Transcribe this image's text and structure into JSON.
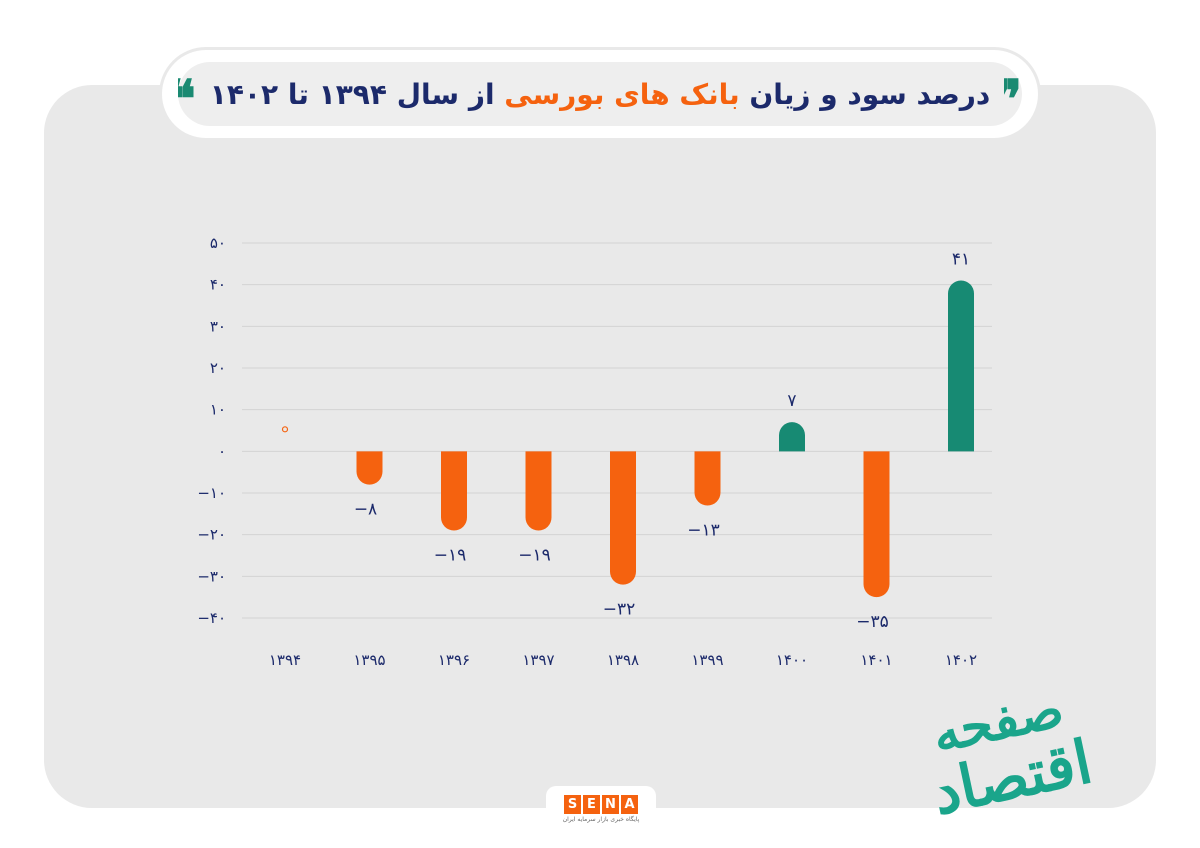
{
  "title": {
    "open_quote": "❞",
    "close_quote": "❝",
    "part1": "درصد سود و زیان",
    "part2": "بانک های بورسی",
    "part3": "از سال ۱۳۹۴ تا ۱۴۰۲"
  },
  "colors": {
    "positive": "#178a73",
    "negative": "#f5620f",
    "text": "#1c2a6b",
    "grid": "#d3d3d3"
  },
  "chart_data": {
    "type": "bar",
    "categories": [
      "۱۳۹۴",
      "۱۳۹۵",
      "۱۳۹۶",
      "۱۳۹۷",
      "۱۳۹۸",
      "۱۳۹۹",
      "۱۴۰۰",
      "۱۴۰۱",
      "۱۴۰۲"
    ],
    "values": [
      0,
      -8,
      -19,
      -19,
      -32,
      -13,
      7,
      -35,
      41
    ],
    "value_labels": [
      "۰",
      "−۸",
      "−۱۹",
      "−۱۹",
      "−۳۲",
      "−۱۳",
      "۷",
      "−۳۵",
      "۴۱"
    ],
    "y_ticks": [
      50,
      40,
      30,
      20,
      10,
      0,
      -10,
      -20,
      -30,
      -40
    ],
    "y_tick_labels": [
      "۵۰",
      "۴۰",
      "۳۰",
      "۲۰",
      "۱۰",
      "۰",
      "−۱۰",
      "−۲۰",
      "−۳۰",
      "−۴۰"
    ],
    "ylim": [
      -40,
      50
    ],
    "grid": true
  },
  "logo": {
    "letters": [
      "S",
      "E",
      "N",
      "A"
    ],
    "tagline": "پایگاه خبری بازار سرمایه ایران"
  },
  "brand": {
    "line1": "صفحه",
    "line2": "اقتصاد"
  }
}
